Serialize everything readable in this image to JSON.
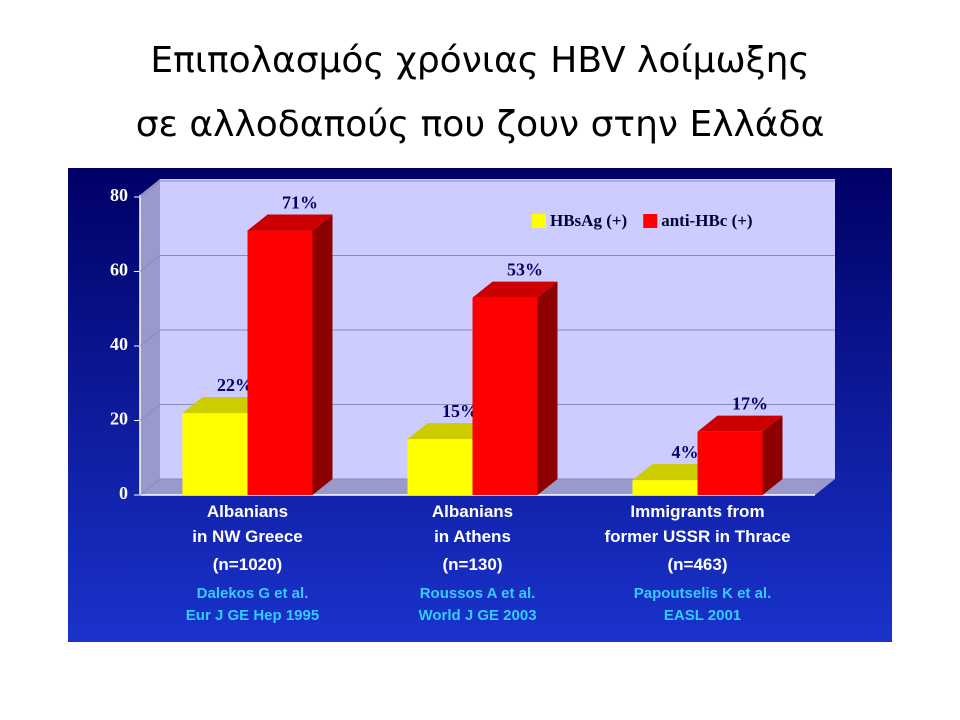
{
  "chart_data": {
    "type": "bar",
    "title": [
      "Επιπολασμός χρόνιας HBV λοίμωξης",
      "σε αλλοδαπούς που ζουν στην Ελλάδα"
    ],
    "categories": [
      [
        "Albanians",
        "in NW Greece"
      ],
      [
        "Albanians",
        "in Athens"
      ],
      [
        "Immigrants from",
        "former USSR in Thrace"
      ]
    ],
    "sample_sizes": [
      "(n=1020)",
      "(n=130)",
      "(n=463)"
    ],
    "citations": [
      [
        "Dalekos G et al.",
        "Eur J GE Hep 1995"
      ],
      [
        "Roussos A et al.",
        "World J GE  2003"
      ],
      [
        "Papoutselis K et al.",
        "EASL 2001"
      ]
    ],
    "series": [
      {
        "name": "HBsAg (+)",
        "color": "#ffff00",
        "values": [
          22,
          15,
          4
        ],
        "value_labels": [
          "22%",
          "15%",
          "4%"
        ]
      },
      {
        "name": "anti-HBc (+)",
        "color": "#ff0000",
        "values": [
          71,
          53,
          17
        ],
        "value_labels": [
          "71%",
          "53%",
          "17%"
        ]
      }
    ],
    "ylim": [
      0,
      80
    ],
    "yticks": [
      0,
      20,
      40,
      60,
      80
    ],
    "grid": true,
    "legend": "top-right"
  }
}
